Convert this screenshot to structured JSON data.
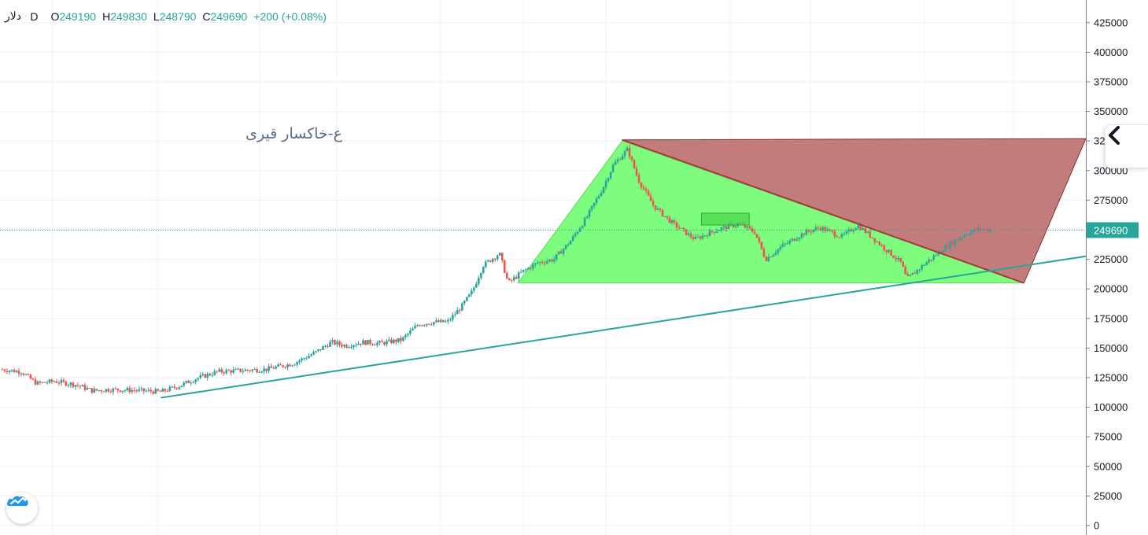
{
  "legend": {
    "symbol": "دلار",
    "separator": "·",
    "timeframe": "D",
    "open_label": "O",
    "open_value": "249190",
    "high_label": "H",
    "high_value": "249830",
    "low_label": "L",
    "low_value": "248790",
    "close_label": "C",
    "close_value": "249690",
    "change": "+200 (+0.08%)"
  },
  "annotation_text": "ع-خاکسار قیری",
  "icons": {
    "collapse": "chevron-left-icon",
    "logo": "tradingview-cloud-icon"
  },
  "colors": {
    "up": "#26a69a",
    "down": "#ef5350",
    "green_zone": "#7dfc7d",
    "red_zone": "#c27c7c",
    "trendline": "#26a69a",
    "last_price": "#26a69a"
  },
  "chart_data": {
    "type": "candlestick",
    "timeframe": "D",
    "y_axis": {
      "min": 0,
      "max": 425000,
      "ticks": [
        "425000",
        "400000",
        "375000",
        "350000",
        "325000",
        "300000",
        "275000",
        "250000",
        "225000",
        "200000",
        "175000",
        "150000",
        "125000",
        "100000",
        "75000",
        "50000",
        "25000",
        "0"
      ]
    },
    "last_price": {
      "value": 249690,
      "label": "249690"
    },
    "price_path": [
      [
        0,
        132000
      ],
      [
        0.02,
        130000
      ],
      [
        0.028,
        124000
      ],
      [
        0.034,
        120000
      ],
      [
        0.05,
        122000
      ],
      [
        0.07,
        119000
      ],
      [
        0.085,
        114000
      ],
      [
        0.1,
        115000
      ],
      [
        0.12,
        114500
      ],
      [
        0.148,
        113000
      ],
      [
        0.165,
        118000
      ],
      [
        0.18,
        124000
      ],
      [
        0.2,
        130000
      ],
      [
        0.22,
        131000
      ],
      [
        0.245,
        132000
      ],
      [
        0.27,
        137000
      ],
      [
        0.29,
        146000
      ],
      [
        0.305,
        155000
      ],
      [
        0.318,
        152000
      ],
      [
        0.335,
        155000
      ],
      [
        0.35,
        154000
      ],
      [
        0.37,
        157000
      ],
      [
        0.385,
        170000
      ],
      [
        0.4,
        172000
      ],
      [
        0.412,
        172000
      ],
      [
        0.425,
        185000
      ],
      [
        0.435,
        198000
      ],
      [
        0.445,
        220000
      ],
      [
        0.46,
        230000
      ],
      [
        0.468,
        205000
      ],
      [
        0.482,
        215000
      ],
      [
        0.495,
        222000
      ],
      [
        0.51,
        225000
      ],
      [
        0.525,
        240000
      ],
      [
        0.54,
        260000
      ],
      [
        0.555,
        285000
      ],
      [
        0.565,
        305000
      ],
      [
        0.578,
        318000
      ],
      [
        0.588,
        292000
      ],
      [
        0.602,
        270000
      ],
      [
        0.62,
        255000
      ],
      [
        0.64,
        242000
      ],
      [
        0.66,
        250000
      ],
      [
        0.68,
        255000
      ],
      [
        0.695,
        248000
      ],
      [
        0.705,
        225000
      ],
      [
        0.72,
        236000
      ],
      [
        0.74,
        247000
      ],
      [
        0.755,
        252000
      ],
      [
        0.775,
        244000
      ],
      [
        0.79,
        254000
      ],
      [
        0.81,
        238000
      ],
      [
        0.83,
        222000
      ],
      [
        0.835,
        208000
      ],
      [
        0.85,
        220000
      ],
      [
        0.87,
        235000
      ],
      [
        0.89,
        247000
      ],
      [
        0.903,
        251000
      ],
      [
        0.912,
        249690
      ]
    ],
    "drawings": [
      {
        "type": "triangle",
        "color": "green",
        "points": [
          [
            0.477,
            205000
          ],
          [
            0.573,
            325000
          ],
          [
            0.943,
            205000
          ]
        ]
      },
      {
        "type": "triangle",
        "color": "red",
        "points": [
          [
            0.573,
            326000
          ],
          [
            1.0,
            327000
          ],
          [
            0.943,
            205000
          ]
        ]
      },
      {
        "type": "trendline",
        "points": [
          [
            0.148,
            108000
          ],
          [
            1.01,
            229000
          ]
        ]
      },
      {
        "type": "rectangle",
        "color": "green",
        "x": [
          0.646,
          0.69
        ],
        "y": [
          254000,
          264000
        ]
      }
    ]
  }
}
